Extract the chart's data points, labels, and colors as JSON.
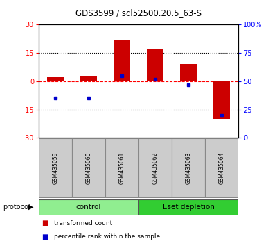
{
  "title": "GDS3599 / scl52500.20.5_63-S",
  "samples": [
    "GSM435059",
    "GSM435060",
    "GSM435061",
    "GSM435062",
    "GSM435063",
    "GSM435064"
  ],
  "red_bars": [
    2.0,
    3.0,
    22.0,
    17.0,
    9.0,
    -20.0
  ],
  "blue_dot_percentile": [
    35,
    35,
    55,
    52,
    47,
    20
  ],
  "ylim_left": [
    -30,
    30
  ],
  "ylim_right": [
    0,
    100
  ],
  "yticks_left": [
    -30,
    -15,
    0,
    15,
    30
  ],
  "ytick_labels_right": [
    "0",
    "25",
    "50",
    "75",
    "100%"
  ],
  "hlines": [
    15,
    -15
  ],
  "group1_label": "control",
  "group2_label": "Eset depletion",
  "group1_color": "#90EE90",
  "group2_color": "#32CD32",
  "protocol_label": "protocol",
  "legend_red": "transformed count",
  "legend_blue": "percentile rank within the sample",
  "bar_color": "#CC0000",
  "dot_color": "#0000CC",
  "background_color": "#ffffff",
  "sample_box_color": "#cccccc",
  "sample_box_edge": "#888888"
}
